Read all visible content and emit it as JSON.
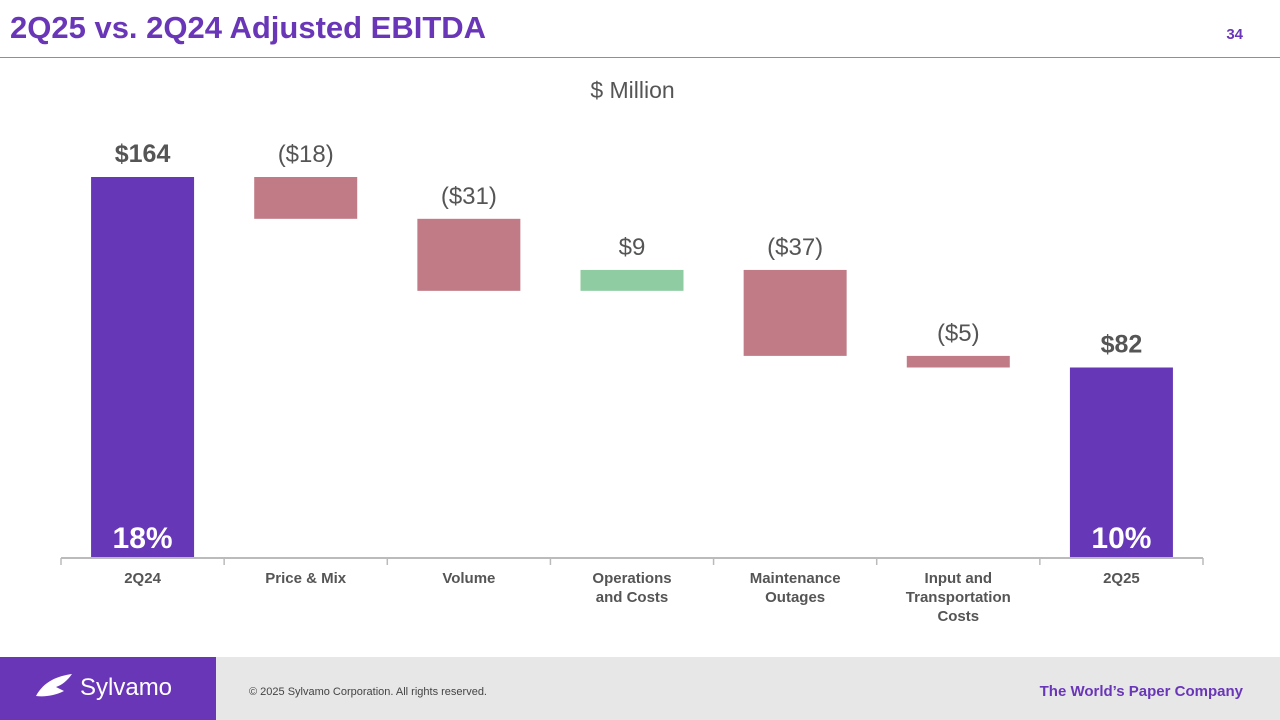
{
  "slide": {
    "title": "2Q25 vs. 2Q24 Adjusted EBITDA",
    "page_number": "34"
  },
  "colors": {
    "total": "#6637b7",
    "decrease": "#c07b87",
    "increase": "#8fcca2",
    "axis": "#bbbbbb",
    "label": "#555555"
  },
  "chart_data": {
    "type": "bar",
    "subtype": "waterfall",
    "title": "$ Million",
    "categories": [
      "2Q24",
      "Price & Mix",
      "Volume",
      "Operations and Costs",
      "Maintenance Outages",
      "Input and Transportation Costs",
      "2Q25"
    ],
    "category_lines": [
      [
        "2Q24"
      ],
      [
        "Price & Mix"
      ],
      [
        "Volume"
      ],
      [
        "Operations",
        "and Costs"
      ],
      [
        "Maintenance",
        "Outages"
      ],
      [
        "Input and",
        "Transportation",
        "Costs"
      ],
      [
        "2Q25"
      ]
    ],
    "values": [
      164,
      -18,
      -31,
      9,
      -37,
      -5,
      82
    ],
    "kinds": [
      "total",
      "decrease",
      "decrease",
      "increase",
      "decrease",
      "decrease",
      "total"
    ],
    "data_labels": [
      "$164",
      "($18)",
      "($31)",
      "$9",
      "($37)",
      "($5)",
      "$82"
    ],
    "margin_labels": [
      "18%",
      "",
      "",
      "",
      "",
      "",
      "10%"
    ],
    "ylim": [
      0,
      164
    ]
  },
  "footer": {
    "logo_text": "Sylvamo",
    "copyright": "© 2025 Sylvamo Corporation. All rights reserved.",
    "tagline": "The World’s Paper Company"
  }
}
